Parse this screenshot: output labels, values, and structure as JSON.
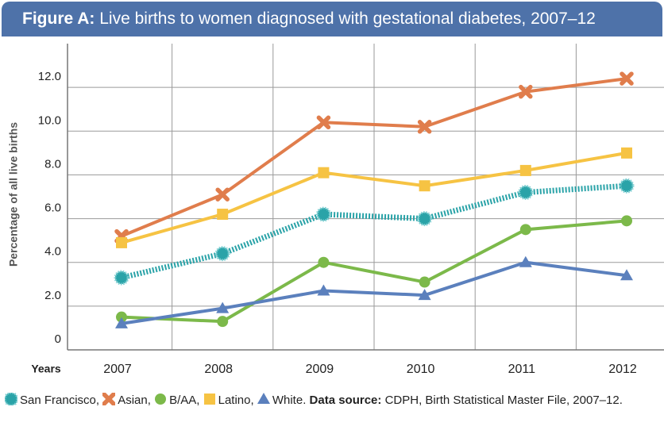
{
  "chart_data": {
    "type": "line",
    "title_label": "Figure A:",
    "title": "Live births to women diagnosed with gestational diabetes, 2007–12",
    "ylabel": "Percentage of all live births",
    "xlabel": "Years",
    "categories": [
      "2007",
      "2008",
      "2009",
      "2010",
      "2011",
      "2012"
    ],
    "ylim": [
      0,
      14
    ],
    "yticks": [
      0,
      {
        "value": 2,
        "label": "2.0"
      },
      {
        "value": 4,
        "label": "4.0"
      },
      {
        "value": 6,
        "label": "6.0"
      },
      {
        "value": 8,
        "label": "8.0"
      },
      {
        "value": 10,
        "label": "10.0"
      },
      {
        "value": 12,
        "label": "12.0"
      }
    ],
    "grid": true,
    "series": [
      {
        "name": "San Francisco",
        "color": "#2aa3a8",
        "marker": "circle",
        "values": [
          3.3,
          4.4,
          6.2,
          6.0,
          7.2,
          7.5
        ]
      },
      {
        "name": "Asian",
        "color": "#e07d4c",
        "marker": "x",
        "values": [
          5.2,
          7.1,
          10.4,
          10.2,
          11.8,
          12.4
        ]
      },
      {
        "name": "B/AA",
        "color": "#7cb94a",
        "marker": "dot",
        "values": [
          1.5,
          1.3,
          4.0,
          3.1,
          5.5,
          5.9
        ]
      },
      {
        "name": "Latino",
        "color": "#f6c343",
        "marker": "square",
        "values": [
          4.9,
          6.2,
          8.1,
          7.5,
          8.2,
          9.0
        ]
      },
      {
        "name": "White",
        "color": "#5b80bd",
        "marker": "triangle",
        "values": [
          1.2,
          1.9,
          2.7,
          2.5,
          4.0,
          3.4
        ]
      }
    ],
    "legend_separators": [
      ",",
      ",",
      ",",
      ",",
      "."
    ],
    "source_label": "Data source:",
    "source": "CDPH, Birth Statistical Master File, 2007–12."
  }
}
